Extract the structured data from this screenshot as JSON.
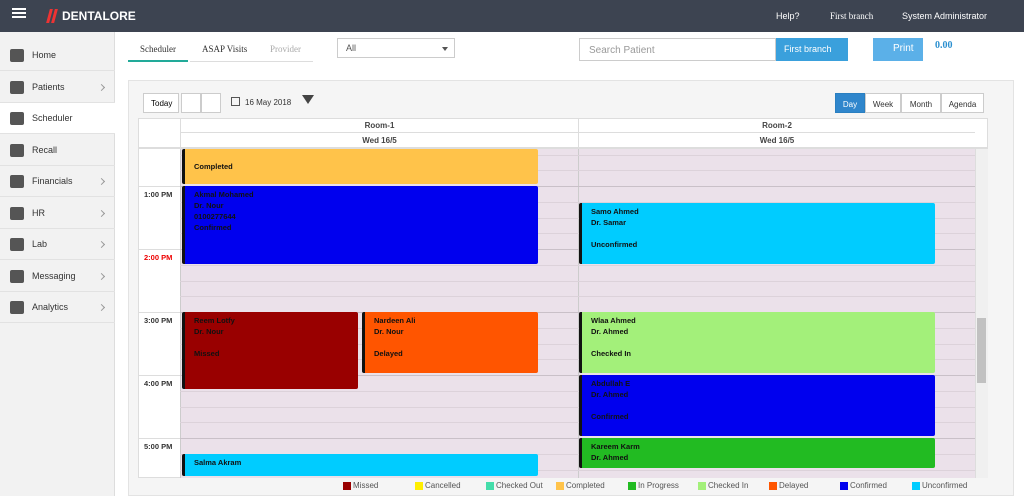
{
  "header": {
    "brand": "DENTALORE",
    "help": "Help?",
    "branch": "First branch",
    "user": "System Administrator"
  },
  "sidebar": {
    "items": [
      "Home",
      "Patients",
      "Scheduler",
      "Recall",
      "Financials",
      "HR",
      "Lab",
      "Messaging",
      "Analytics"
    ]
  },
  "tabs": [
    "Scheduler",
    "ASAP Visits",
    "Provider"
  ],
  "filter": "All",
  "search_placeholder": "Search Patient",
  "branch_button": "First branch",
  "print_button": "Print",
  "balance": "0.00",
  "toolbar": {
    "today": "Today",
    "date": "16 May 2018",
    "views": [
      "Day",
      "Week",
      "Month",
      "Agenda"
    ]
  },
  "rooms": [
    {
      "name": "Room-1",
      "date": "Wed 16/5"
    },
    {
      "name": "Room-2",
      "date": "Wed 16/5"
    }
  ],
  "times": [
    "1:00 PM",
    "2:00 PM",
    "3:00 PM",
    "4:00 PM",
    "5:00 PM"
  ],
  "appointments": [
    {
      "status": "Completed",
      "color": "#ffc34a"
    },
    {
      "name": "Akmal Mohamed",
      "doctor": "Dr. Nour",
      "phone": "0100277644",
      "status": "Confirmed",
      "color": "#0000ee"
    },
    {
      "name": "Reem Lotfy",
      "doctor": "Dr. Nour",
      "status": "Missed",
      "color": "#990000"
    },
    {
      "name": "Nardeen Ali",
      "doctor": "Dr. Nour",
      "status": "Delayed",
      "color": "#ff5500"
    },
    {
      "name": "Salma Akram",
      "color": "#00ccff"
    },
    {
      "name": "Samo Ahmed",
      "doctor": "Dr. Samar",
      "status": "Unconfirmed",
      "color": "#00ccff"
    },
    {
      "name": "Wlaa Ahmed",
      "doctor": "Dr. Ahmed",
      "status": "Checked In",
      "color": "#a3f07a"
    },
    {
      "name": "Abdullah E",
      "doctor": "Dr. Ahmed",
      "status": "Confirmed",
      "color": "#0000ee"
    },
    {
      "name": "Kareem Karm",
      "doctor": "Dr. Ahmed",
      "color": "#22bb22"
    }
  ],
  "legend": [
    {
      "name": "Missed",
      "color": "#990000"
    },
    {
      "name": "Cancelled",
      "color": "#ffee00"
    },
    {
      "name": "Checked Out",
      "color": "#44ddaa"
    },
    {
      "name": "Completed",
      "color": "#ffc34a"
    },
    {
      "name": "In Progress",
      "color": "#22bb22"
    },
    {
      "name": "Checked In",
      "color": "#a3f07a"
    },
    {
      "name": "Delayed",
      "color": "#ff5500"
    },
    {
      "name": "Confirmed",
      "color": "#0000ee"
    },
    {
      "name": "Unconfirmed",
      "color": "#00ccff"
    }
  ]
}
